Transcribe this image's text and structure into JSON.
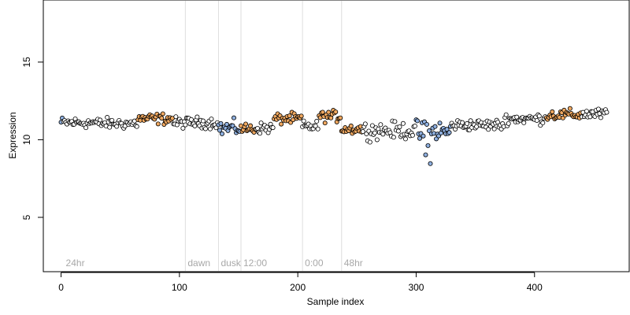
{
  "chart_data": {
    "type": "scatter",
    "title": "",
    "xlabel": "Sample index",
    "ylabel": "Expression",
    "xlim": [
      -15,
      480
    ],
    "ylim": [
      1.5,
      19
    ],
    "xticks": [
      0,
      100,
      200,
      300,
      400
    ],
    "yticks": [
      5,
      10,
      15
    ],
    "grid": false,
    "phase_markers": [
      {
        "x": 105,
        "label": "dawn"
      },
      {
        "x": 133,
        "label": "dusk"
      },
      {
        "x": 152,
        "label": "12:00"
      },
      {
        "x": 204,
        "label": "0:00"
      },
      {
        "x": 237,
        "label": "48hr"
      }
    ],
    "corner_label": {
      "x": 2,
      "label": "24hr"
    },
    "segments": [
      {
        "start": 0,
        "end": 2,
        "base": 11.1,
        "color": "#8fb0e0"
      },
      {
        "start": 2,
        "end": 30,
        "base": 11.1,
        "color": "#ffffff"
      },
      {
        "start": 30,
        "end": 65,
        "base": 11.05,
        "color": "#ffffff"
      },
      {
        "start": 65,
        "end": 95,
        "base": 11.35,
        "color": "#f0a860"
      },
      {
        "start": 95,
        "end": 133,
        "base": 11.1,
        "color": "#ffffff"
      },
      {
        "start": 133,
        "end": 152,
        "base": 10.75,
        "color": "#8fb0e0"
      },
      {
        "start": 152,
        "end": 165,
        "base": 10.7,
        "color": "#f0a860"
      },
      {
        "start": 165,
        "end": 180,
        "base": 10.75,
        "color": "#ffffff"
      },
      {
        "start": 180,
        "end": 204,
        "base": 11.35,
        "color": "#f0a860"
      },
      {
        "start": 204,
        "end": 218,
        "base": 10.85,
        "color": "#ffffff"
      },
      {
        "start": 218,
        "end": 237,
        "base": 11.5,
        "color": "#f0a860"
      },
      {
        "start": 237,
        "end": 255,
        "base": 10.7,
        "color": "#f0a860"
      },
      {
        "start": 255,
        "end": 300,
        "base": 10.6,
        "color": "#ffffff"
      },
      {
        "start": 300,
        "end": 330,
        "base": 10.5,
        "color": "#8fb0e0"
      },
      {
        "start": 330,
        "end": 375,
        "base": 10.95,
        "color": "#ffffff"
      },
      {
        "start": 375,
        "end": 410,
        "base": 11.35,
        "color": "#ffffff"
      },
      {
        "start": 410,
        "end": 440,
        "base": 11.6,
        "color": "#f0a860"
      },
      {
        "start": 440,
        "end": 462,
        "base": 11.65,
        "color": "#ffffff"
      }
    ],
    "n_points": 462
  }
}
